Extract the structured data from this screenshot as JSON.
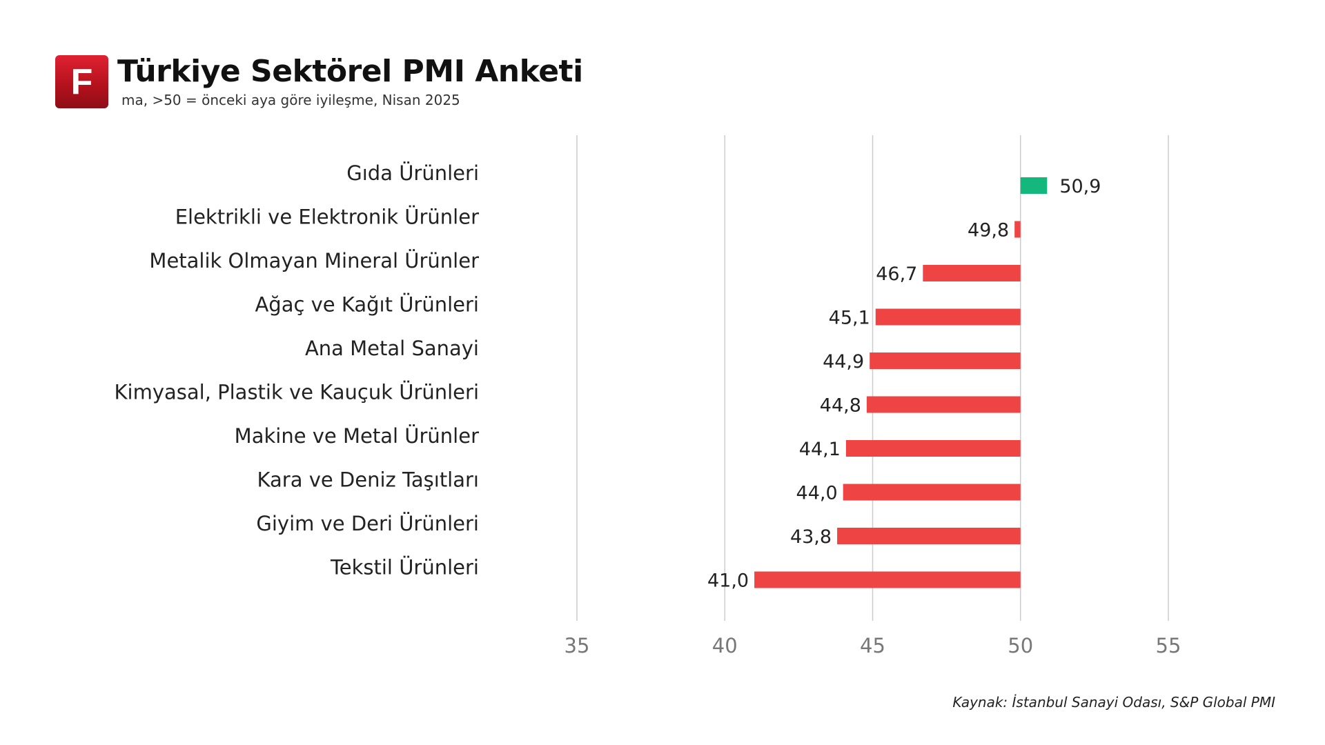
{
  "brand": {
    "logo_letter": "F",
    "accent": "#c8161f"
  },
  "header": {
    "title": "Türkiye Sektörel PMI Anketi",
    "subtitle": "ma, >50 = önceki aya göre iyileşme, Nisan 2025"
  },
  "footer": {
    "source": "Kaynak: İstanbul Sanayi Odası, S&P Global PMI"
  },
  "chart_data": {
    "type": "bar",
    "orientation": "horizontal",
    "baseline": 50,
    "categories": [
      "Gıda Ürünleri",
      "Elektrikli ve Elektronik Ürünler",
      "Metalik Olmayan Mineral Ürünler",
      "Ağaç ve Kağıt Ürünleri",
      "Ana Metal Sanayi",
      "Kimyasal, Plastik ve Kauçuk Ürünleri",
      "Makine ve Metal Ürünler",
      "Kara ve Deniz Taşıtları",
      "Giyim ve Deri Ürünleri",
      "Tekstil Ürünleri"
    ],
    "values": [
      50.9,
      49.8,
      46.7,
      45.1,
      44.9,
      44.8,
      44.1,
      44.0,
      43.8,
      41.0
    ],
    "value_labels": [
      "50,9",
      "49,8",
      "46,7",
      "45,1",
      "44,9",
      "44,8",
      "44,1",
      "44,0",
      "43,8",
      "41,0"
    ],
    "xlim": [
      35,
      55
    ],
    "xticks": [
      35,
      40,
      45,
      50,
      55
    ],
    "grid": true,
    "colors": {
      "positive": "#14b87d",
      "negative": "#ee4444",
      "grid": "#cccccc",
      "tick": "#777777"
    }
  }
}
